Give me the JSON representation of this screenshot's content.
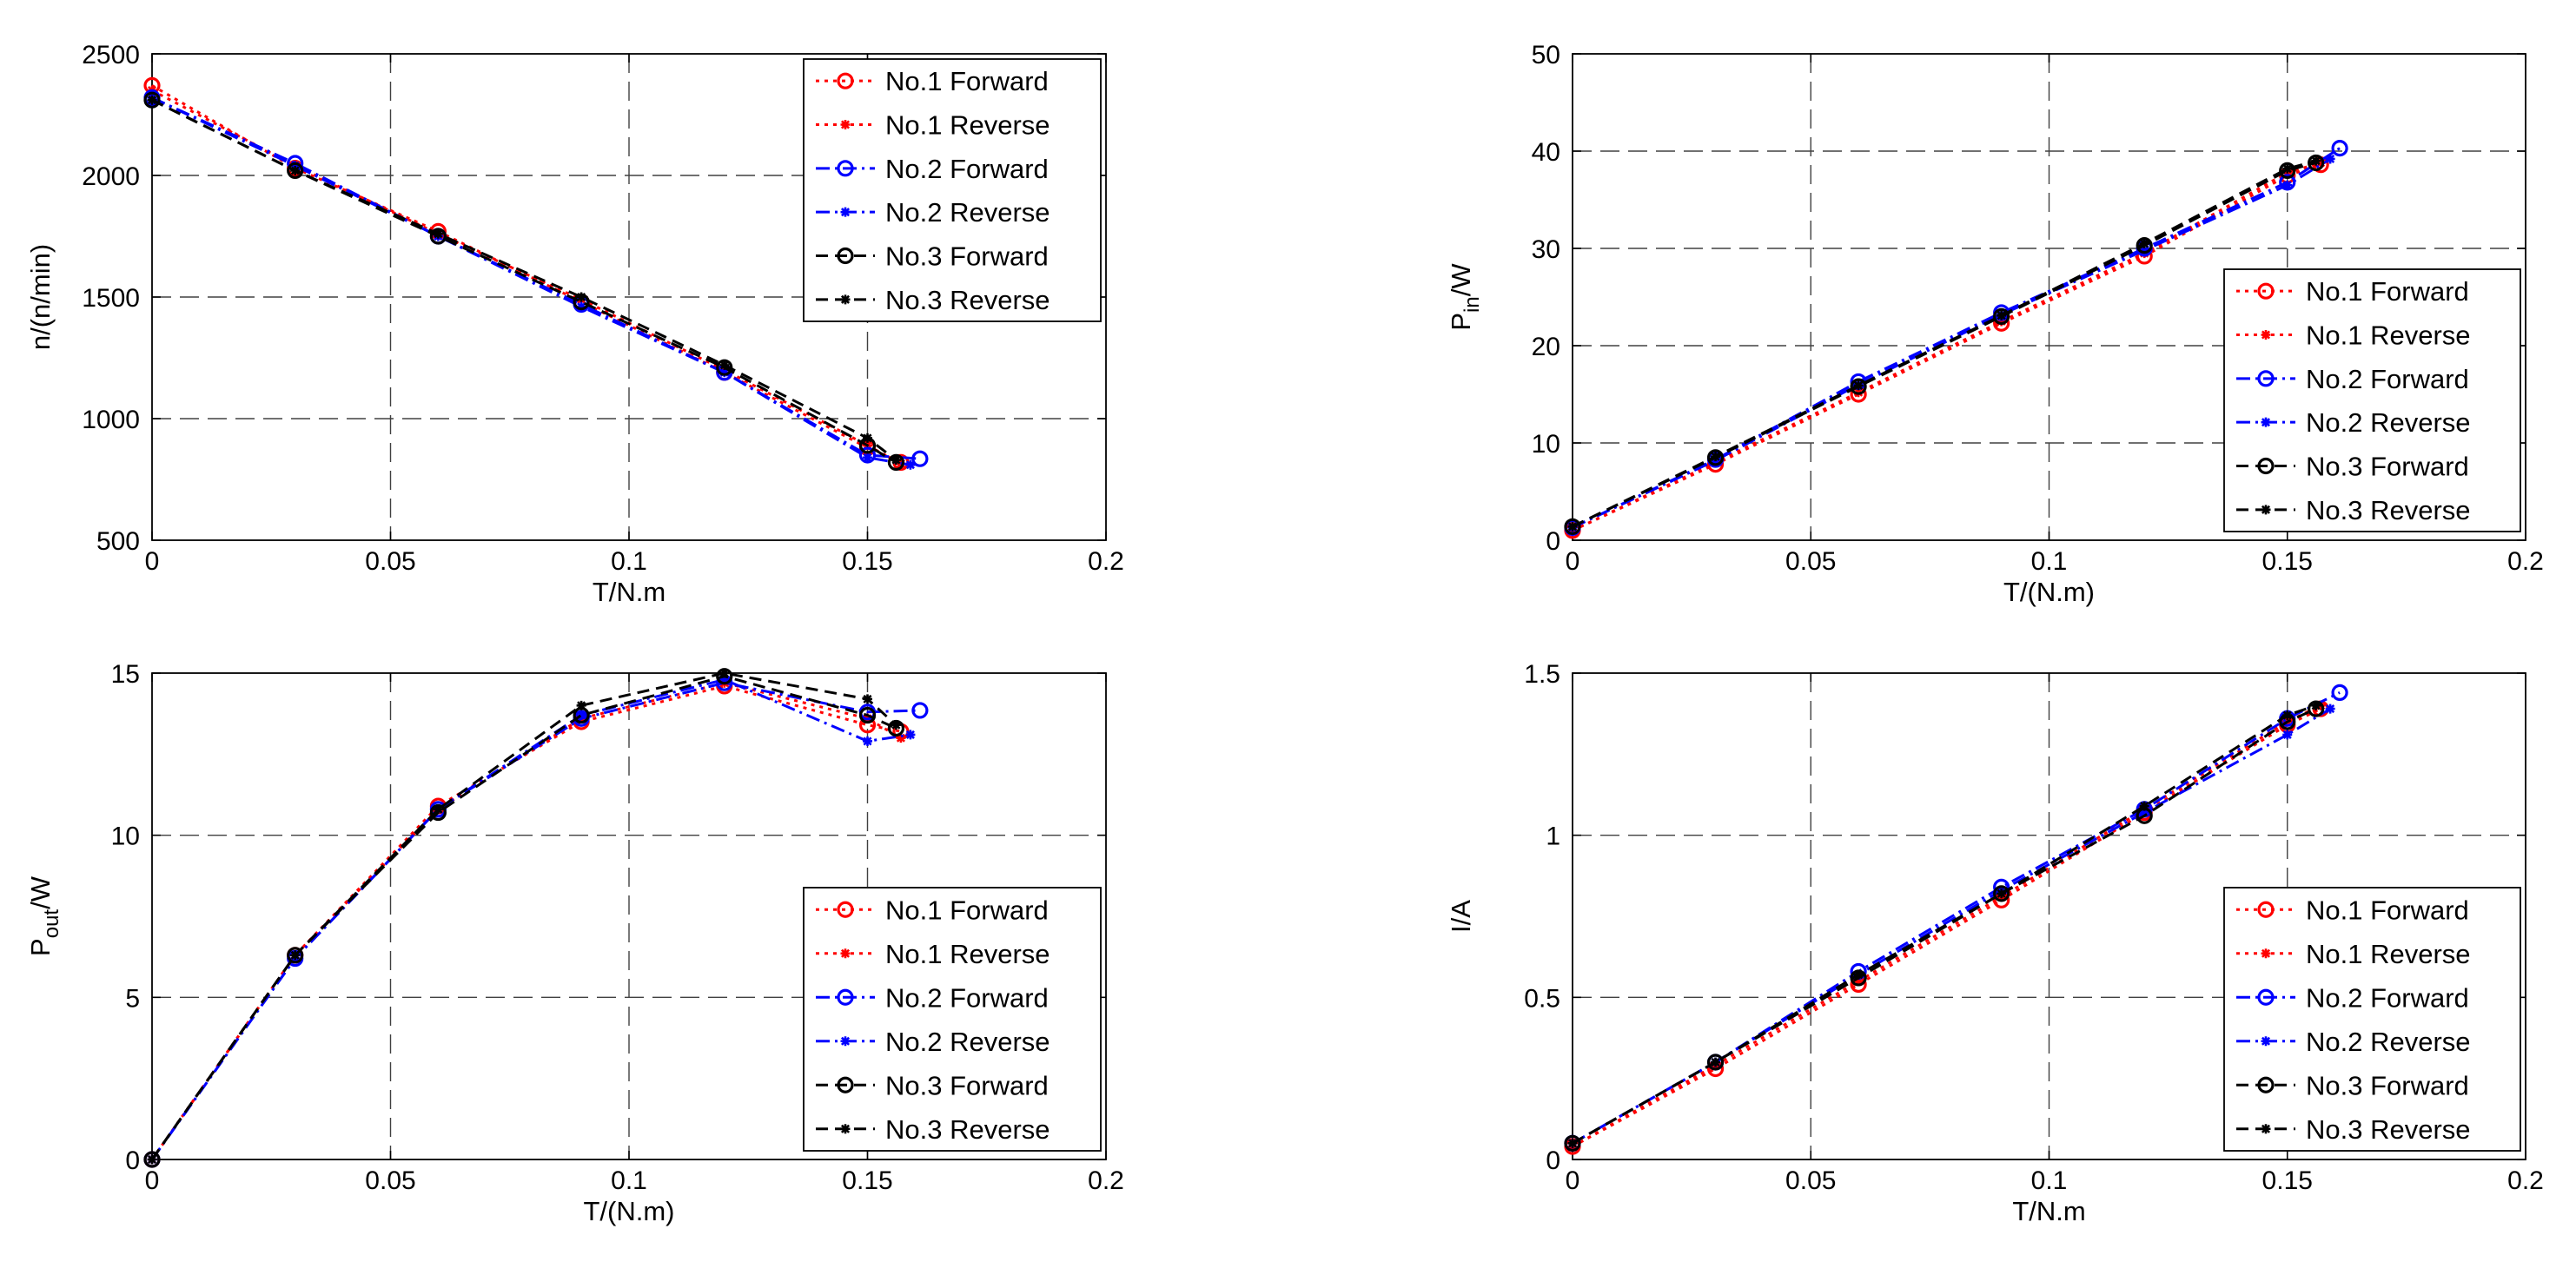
{
  "legend_entries": [
    "No.1 Forward",
    "No.1 Reverse",
    "No.2 Forward",
    "No.2 Reverse",
    "No.3 Forward",
    "No.3 Reverse"
  ],
  "series_styles": [
    {
      "name": "No.1 Forward",
      "color": "#ff0000",
      "dash": "dotted",
      "marker": "circle"
    },
    {
      "name": "No.1 Reverse",
      "color": "#ff0000",
      "dash": "dotted",
      "marker": "star"
    },
    {
      "name": "No.2 Forward",
      "color": "#0000ff",
      "dash": "dashdot",
      "marker": "circle"
    },
    {
      "name": "No.2 Reverse",
      "color": "#0000ff",
      "dash": "dashdot",
      "marker": "star"
    },
    {
      "name": "No.3 Forward",
      "color": "#000000",
      "dash": "dashed",
      "marker": "circle"
    },
    {
      "name": "No.3 Reverse",
      "color": "#000000",
      "dash": "dashed",
      "marker": "star"
    }
  ],
  "chart_data": [
    {
      "type": "line",
      "id": "speed",
      "xlabel": "T/N.m",
      "ylabel": "n/(n/min)",
      "xlim": [
        0,
        0.2
      ],
      "ylim": [
        500,
        2500
      ],
      "xticks": [
        0,
        0.05,
        0.1,
        0.15,
        0.2
      ],
      "xtick_labels": [
        "0",
        "0.05",
        "0.1",
        "0.15",
        "0.2"
      ],
      "yticks": [
        500,
        1000,
        1500,
        2000,
        2500
      ],
      "ytick_labels": [
        "500",
        "1000",
        "1500",
        "2000",
        "2500"
      ],
      "legend_position": "top-right",
      "series": [
        {
          "name": "No.1 Forward",
          "x": [
            0,
            0.03,
            0.06,
            0.09,
            0.12,
            0.15,
            0.157
          ],
          "y": [
            2370,
            2030,
            1770,
            1480,
            1190,
            880,
            820
          ]
        },
        {
          "name": "No.1 Reverse",
          "x": [
            0,
            0.03,
            0.06,
            0.09,
            0.12,
            0.15,
            0.157
          ],
          "y": [
            2350,
            2040,
            1760,
            1490,
            1200,
            890,
            815
          ]
        },
        {
          "name": "No.2 Forward",
          "x": [
            0,
            0.03,
            0.06,
            0.09,
            0.12,
            0.15,
            0.161
          ],
          "y": [
            2320,
            2050,
            1750,
            1470,
            1190,
            850,
            835
          ]
        },
        {
          "name": "No.2 Reverse",
          "x": [
            0,
            0.03,
            0.06,
            0.09,
            0.12,
            0.15,
            0.159
          ],
          "y": [
            2320,
            2040,
            1750,
            1460,
            1190,
            840,
            810
          ]
        },
        {
          "name": "No.3 Forward",
          "x": [
            0,
            0.03,
            0.06,
            0.09,
            0.12,
            0.15,
            0.156
          ],
          "y": [
            2310,
            2020,
            1750,
            1480,
            1210,
            890,
            820
          ]
        },
        {
          "name": "No.3 Reverse",
          "x": [
            0,
            0.03,
            0.06,
            0.09,
            0.12,
            0.15,
            0.156
          ],
          "y": [
            2310,
            2020,
            1760,
            1500,
            1220,
            920,
            830
          ]
        }
      ]
    },
    {
      "type": "line",
      "id": "pin",
      "xlabel": "T/(N.m)",
      "ylabel_main": "P",
      "ylabel_sub": "in",
      "ylabel_tail": "/W",
      "xlim": [
        0,
        0.2
      ],
      "ylim": [
        0,
        50
      ],
      "xticks": [
        0,
        0.05,
        0.1,
        0.15,
        0.2
      ],
      "xtick_labels": [
        "0",
        "0.05",
        "0.1",
        "0.15",
        "0.2"
      ],
      "yticks": [
        0,
        10,
        20,
        30,
        40,
        50
      ],
      "ytick_labels": [
        "0",
        "10",
        "20",
        "30",
        "40",
        "50"
      ],
      "legend_position": "bottom-right",
      "series": [
        {
          "name": "No.1 Forward",
          "x": [
            0,
            0.03,
            0.06,
            0.09,
            0.12,
            0.15,
            0.157
          ],
          "y": [
            1.0,
            7.8,
            15.0,
            22.3,
            29.2,
            37.5,
            38.6
          ]
        },
        {
          "name": "No.1 Reverse",
          "x": [
            0,
            0.03,
            0.06,
            0.09,
            0.12,
            0.15,
            0.157
          ],
          "y": [
            1.0,
            8.0,
            15.2,
            22.5,
            29.5,
            37.8,
            38.8
          ]
        },
        {
          "name": "No.2 Forward",
          "x": [
            0,
            0.03,
            0.06,
            0.09,
            0.12,
            0.15,
            0.161
          ],
          "y": [
            1.3,
            8.3,
            16.3,
            23.4,
            30.0,
            36.8,
            40.3
          ]
        },
        {
          "name": "No.2 Reverse",
          "x": [
            0,
            0.03,
            0.06,
            0.09,
            0.12,
            0.15,
            0.159
          ],
          "y": [
            1.3,
            8.2,
            16.0,
            23.2,
            29.8,
            36.5,
            39.2
          ]
        },
        {
          "name": "No.3 Forward",
          "x": [
            0,
            0.03,
            0.06,
            0.09,
            0.12,
            0.15,
            0.156
          ],
          "y": [
            1.4,
            8.5,
            15.8,
            23.0,
            30.3,
            38.0,
            38.8
          ]
        },
        {
          "name": "No.3 Reverse",
          "x": [
            0,
            0.03,
            0.06,
            0.09,
            0.12,
            0.15,
            0.156
          ],
          "y": [
            1.4,
            8.6,
            15.9,
            23.1,
            30.5,
            38.2,
            39.0
          ]
        }
      ]
    },
    {
      "type": "line",
      "id": "pout",
      "xlabel": "T/(N.m)",
      "ylabel_main": "P",
      "ylabel_sub": "out",
      "ylabel_tail": "/W",
      "xlim": [
        0,
        0.2
      ],
      "ylim": [
        0,
        15
      ],
      "xticks": [
        0,
        0.05,
        0.1,
        0.15,
        0.2
      ],
      "xtick_labels": [
        "0",
        "0.05",
        "0.1",
        "0.15",
        "0.2"
      ],
      "yticks": [
        0,
        5,
        10,
        15
      ],
      "ytick_labels": [
        "0",
        "5",
        "10",
        "15"
      ],
      "legend_position": "bottom-right",
      "series": [
        {
          "name": "No.1 Forward",
          "x": [
            0,
            0.03,
            0.06,
            0.09,
            0.12,
            0.15,
            0.157
          ],
          "y": [
            0,
            6.3,
            10.9,
            13.5,
            14.6,
            13.4,
            13.2
          ]
        },
        {
          "name": "No.1 Reverse",
          "x": [
            0,
            0.03,
            0.06,
            0.09,
            0.12,
            0.15,
            0.157
          ],
          "y": [
            0,
            6.3,
            10.8,
            13.6,
            14.7,
            13.6,
            13.0
          ]
        },
        {
          "name": "No.2 Forward",
          "x": [
            0,
            0.03,
            0.06,
            0.09,
            0.12,
            0.15,
            0.161
          ],
          "y": [
            0,
            6.2,
            10.8,
            13.6,
            14.7,
            13.8,
            13.85
          ]
        },
        {
          "name": "No.2 Reverse",
          "x": [
            0,
            0.03,
            0.06,
            0.09,
            0.12,
            0.15,
            0.159
          ],
          "y": [
            0,
            6.2,
            10.8,
            13.7,
            14.8,
            12.9,
            13.1
          ]
        },
        {
          "name": "No.3 Forward",
          "x": [
            0,
            0.03,
            0.06,
            0.09,
            0.12,
            0.15,
            0.156
          ],
          "y": [
            0,
            6.3,
            10.7,
            13.7,
            14.9,
            13.7,
            13.3
          ]
        },
        {
          "name": "No.3 Reverse",
          "x": [
            0,
            0.03,
            0.06,
            0.09,
            0.12,
            0.15,
            0.156
          ],
          "y": [
            0,
            6.3,
            10.8,
            14.0,
            15.0,
            14.2,
            13.4
          ]
        }
      ]
    },
    {
      "type": "line",
      "id": "current",
      "xlabel": "T/N.m",
      "ylabel": "I/A",
      "xlim": [
        0,
        0.2
      ],
      "ylim": [
        0,
        1.5
      ],
      "xticks": [
        0,
        0.05,
        0.1,
        0.15,
        0.2
      ],
      "xtick_labels": [
        "0",
        "0.05",
        "0.1",
        "0.15",
        "0.2"
      ],
      "yticks": [
        0,
        0.5,
        1,
        1.5
      ],
      "ytick_labels": [
        "0",
        "0.5",
        "1",
        "1.5"
      ],
      "legend_position": "bottom-right",
      "series": [
        {
          "name": "No.1 Forward",
          "x": [
            0,
            0.03,
            0.06,
            0.09,
            0.12,
            0.15,
            0.157
          ],
          "y": [
            0.04,
            0.28,
            0.54,
            0.8,
            1.07,
            1.34,
            1.39
          ]
        },
        {
          "name": "No.1 Reverse",
          "x": [
            0,
            0.03,
            0.06,
            0.09,
            0.12,
            0.15,
            0.157
          ],
          "y": [
            0.04,
            0.29,
            0.55,
            0.81,
            1.08,
            1.35,
            1.4
          ]
        },
        {
          "name": "No.2 Forward",
          "x": [
            0,
            0.03,
            0.06,
            0.09,
            0.12,
            0.15,
            0.161
          ],
          "y": [
            0.05,
            0.3,
            0.58,
            0.84,
            1.08,
            1.36,
            1.44
          ]
        },
        {
          "name": "No.2 Reverse",
          "x": [
            0,
            0.03,
            0.06,
            0.09,
            0.12,
            0.15,
            0.159
          ],
          "y": [
            0.05,
            0.3,
            0.57,
            0.83,
            1.07,
            1.31,
            1.39
          ]
        },
        {
          "name": "No.3 Forward",
          "x": [
            0,
            0.03,
            0.06,
            0.09,
            0.12,
            0.15,
            0.156
          ],
          "y": [
            0.05,
            0.3,
            0.56,
            0.82,
            1.06,
            1.35,
            1.39
          ]
        },
        {
          "name": "No.3 Reverse",
          "x": [
            0,
            0.03,
            0.06,
            0.09,
            0.12,
            0.15,
            0.156
          ],
          "y": [
            0.05,
            0.3,
            0.57,
            0.82,
            1.09,
            1.37,
            1.4
          ]
        }
      ]
    }
  ]
}
